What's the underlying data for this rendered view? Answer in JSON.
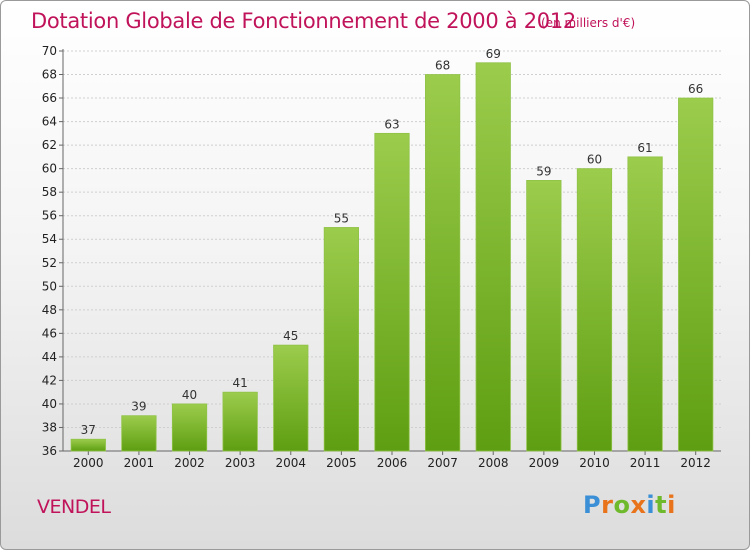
{
  "header": {
    "title": "Dotation Globale de Fonctionnement de 2000 à 2012",
    "subtitle": "(en milliers d'€)"
  },
  "footer": {
    "place": "VENDEL",
    "brand": "Proxiti",
    "brand_colors": [
      "#3a8fd6",
      "#e8731a",
      "#6fba2c",
      "#e8731a",
      "#3a8fd6",
      "#6fba2c",
      "#e8731a"
    ]
  },
  "chart_data": {
    "type": "bar",
    "title": "Dotation Globale de Fonctionnement de 2000 à 2012",
    "subtitle": "(en milliers d'€)",
    "categories": [
      "2000",
      "2001",
      "2002",
      "2003",
      "2004",
      "2005",
      "2006",
      "2007",
      "2008",
      "2009",
      "2010",
      "2011",
      "2012"
    ],
    "values": [
      37,
      39,
      40,
      41,
      45,
      55,
      63,
      68,
      69,
      59,
      60,
      61,
      66
    ],
    "ylim": [
      36,
      70
    ],
    "yticks": [
      36,
      38,
      40,
      42,
      44,
      46,
      48,
      50,
      52,
      54,
      56,
      58,
      60,
      62,
      64,
      66,
      68,
      70
    ],
    "grid": true,
    "bar_color_top": "#9ccc4c",
    "bar_color_bottom": "#5e9e12",
    "legend": "none"
  }
}
